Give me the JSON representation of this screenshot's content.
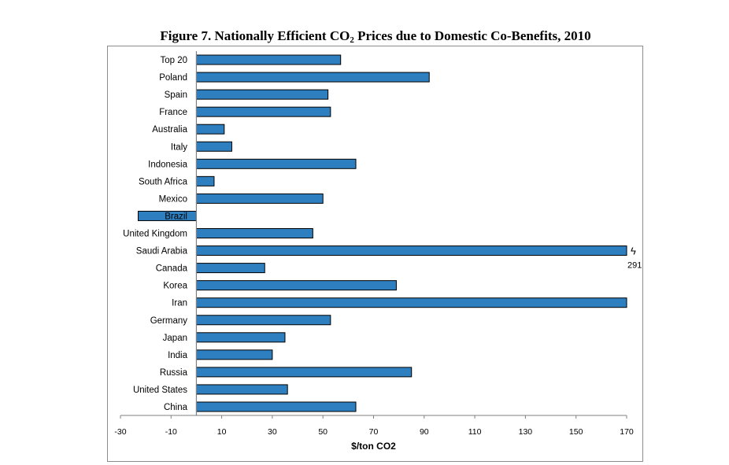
{
  "chart_data": {
    "type": "bar",
    "orientation": "horizontal",
    "title": "Figure 7. Nationally Efficient CO",
    "title_subscript": "2",
    "title_suffix": " Prices due to Domestic Co-Benefits, 2010",
    "xlabel": "$/ton CO2",
    "ylabel": "",
    "xlim": [
      -30,
      170
    ],
    "xticks": [
      -30,
      -10,
      10,
      30,
      50,
      70,
      90,
      110,
      130,
      150,
      170
    ],
    "categories": [
      "Top 20",
      "Poland",
      "Spain",
      "France",
      "Australia",
      "Italy",
      "Indonesia",
      "South Africa",
      "Mexico",
      "Brazil",
      "United Kingdom",
      "Saudi Arabia",
      "Canada",
      "Korea",
      "Iran",
      "Germany",
      "Japan",
      "India",
      "Russia",
      "United States",
      "China"
    ],
    "values": [
      57,
      92,
      52,
      53,
      11,
      14,
      63,
      7,
      50,
      -23,
      46,
      291,
      27,
      79,
      170,
      53,
      35,
      30,
      85,
      36,
      63
    ],
    "bar_color": "#2e7fbf",
    "bar_edge_color": "#000000",
    "axis_break": {
      "category": "Saudi Arabia",
      "symbol": "ϟ",
      "label": "291"
    },
    "grid": false,
    "legend": "none"
  }
}
